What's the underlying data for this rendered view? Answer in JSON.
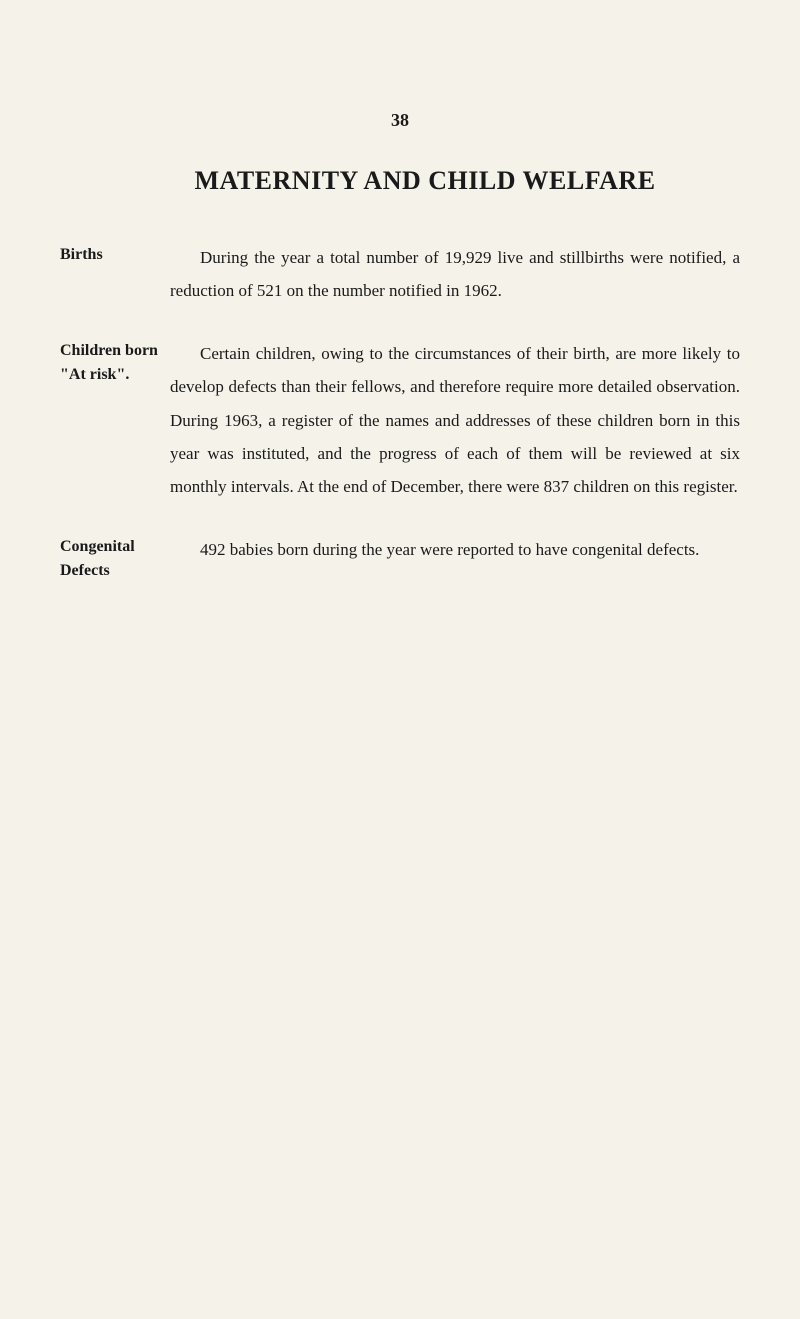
{
  "page_number": "38",
  "title": "MATERNITY AND CHILD WELFARE",
  "sections": [
    {
      "label": "Births",
      "text": "During the year a total number of 19,929 live and stillbirths were notified, a reduction of 521 on the number notified in 1962."
    },
    {
      "label": "Children born \"At risk\".",
      "text": "Certain children, owing to the circumstances of their birth, are more likely to develop defects than their fellows, and therefore require more detailed observation. During 1963, a register of the names and addresses of these children born in this year was instituted, and the progress of each of them will be reviewed at six monthly intervals. At the end of December, there were 837 children on this register."
    },
    {
      "label": "Congenital Defects",
      "text": "492 babies born during the year were reported to have congenital defects."
    }
  ],
  "colors": {
    "background": "#f5f2ea",
    "text": "#1a1a1a"
  },
  "typography": {
    "body_font_size": 17,
    "title_font_size": 26,
    "label_font_size": 16,
    "page_number_font_size": 18,
    "line_height": 1.95,
    "font_family": "Georgia, Times New Roman, serif"
  }
}
